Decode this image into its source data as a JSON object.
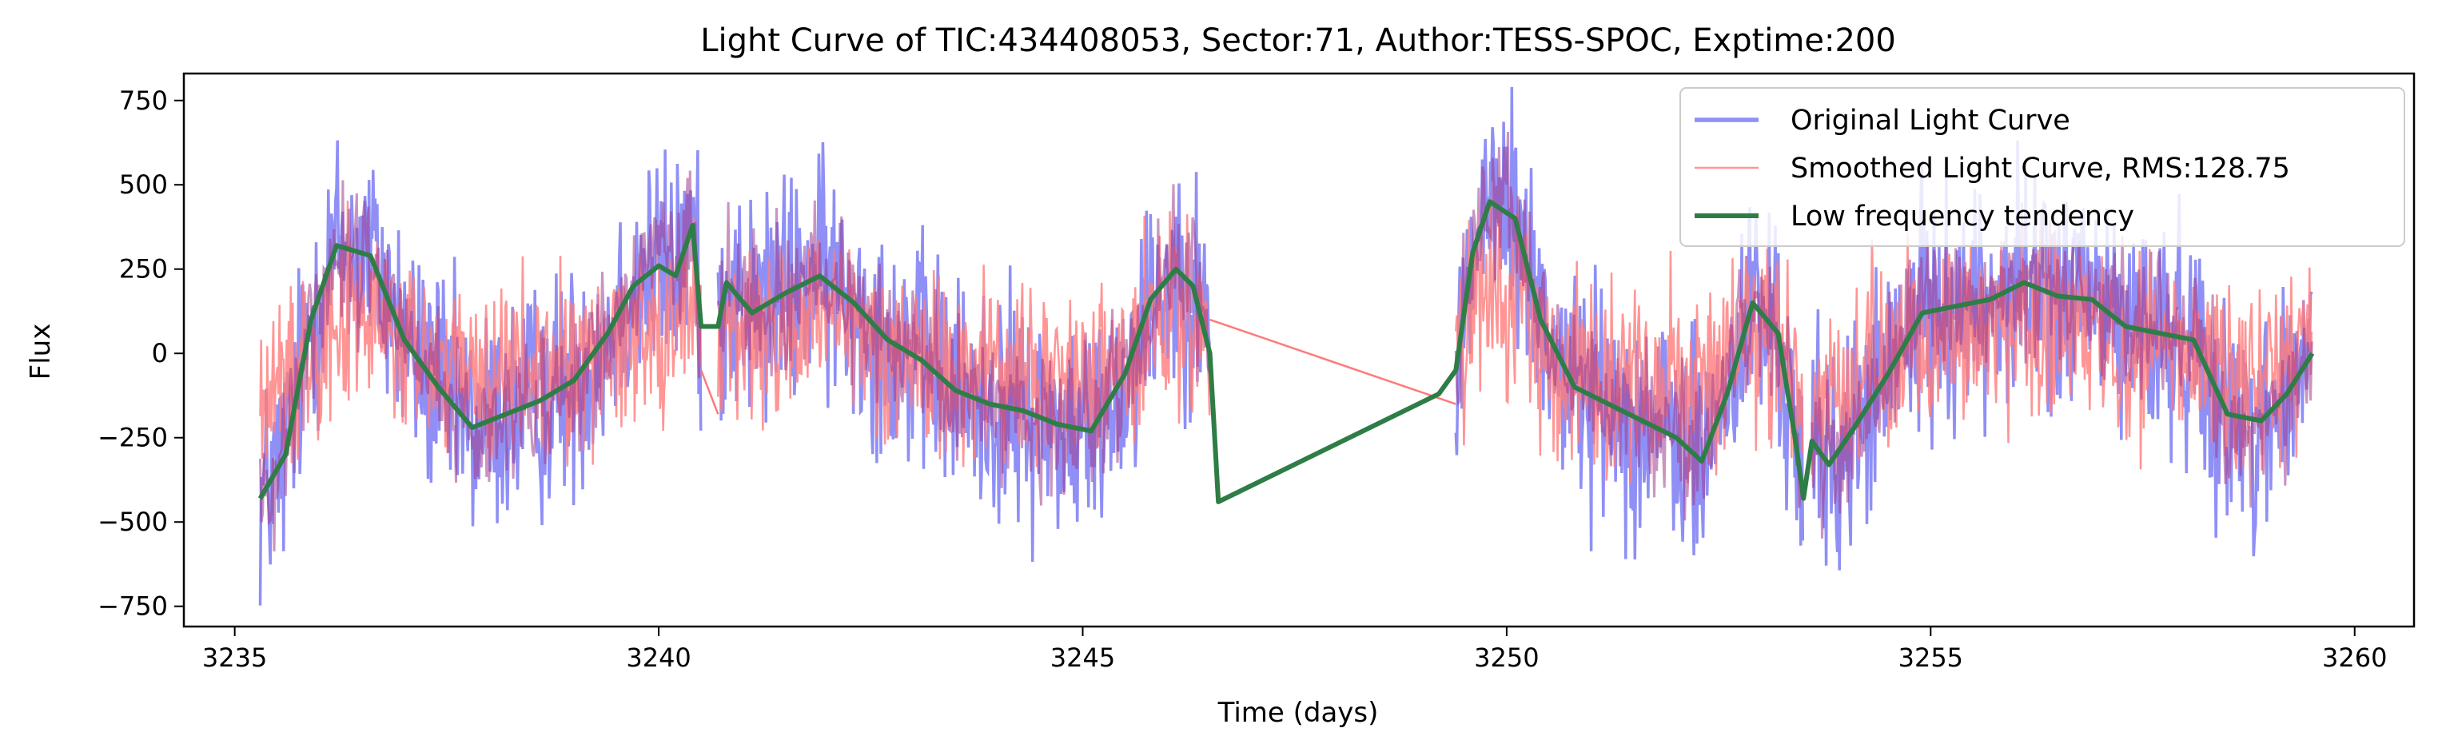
{
  "chart_data": {
    "type": "line",
    "title": "Light Curve of TIC:434408053, Sector:71, Author:TESS-SPOC, Exptime:200",
    "xlabel": "Time (days)",
    "ylabel": "Flux",
    "xlim": [
      3234.4,
      3260.7
    ],
    "ylim": [
      -810,
      830
    ],
    "xticks": [
      3235,
      3240,
      3245,
      3250,
      3255,
      3260
    ],
    "yticks": [
      -750,
      -500,
      -250,
      0,
      250,
      500,
      750
    ],
    "xtick_labels": [
      "3235",
      "3240",
      "3245",
      "3250",
      "3255",
      "3260"
    ],
    "ytick_labels": [
      "−750",
      "−500",
      "−250",
      "0",
      "250",
      "500",
      "750"
    ],
    "grid": false,
    "legend_position": "top-right",
    "series": [
      {
        "name": "Original Light Curve",
        "color": "#7b7bf5",
        "style": "noisy",
        "segments": [
          [
            3235.3,
            3240.5
          ],
          [
            3240.7,
            3246.5
          ],
          [
            3249.4,
            3253.5
          ],
          [
            3253.6,
            3259.5
          ]
        ],
        "amplitude": 230
      },
      {
        "name": "Smoothed Light Curve, RMS:128.75",
        "color": "#ff7a7a",
        "style": "noisy",
        "segments": [
          [
            3235.3,
            3240.5
          ],
          [
            3240.7,
            3246.5
          ],
          [
            3249.4,
            3253.5
          ],
          [
            3253.6,
            3259.5
          ]
        ],
        "amplitude": 128.75,
        "gap_links": [
          {
            "x": [
              3240.5,
              3240.7
            ],
            "y": [
              -50,
              -180
            ]
          },
          {
            "x": [
              3246.5,
              3249.4
            ],
            "y": [
              100,
              -150
            ]
          }
        ]
      },
      {
        "name": "Low frequency tendency",
        "color": "#2e7d46",
        "style": "trend",
        "x": [
          3235.3,
          3235.6,
          3235.9,
          3236.2,
          3236.6,
          3237.0,
          3237.4,
          3237.8,
          3238.2,
          3238.6,
          3239.0,
          3239.4,
          3239.7,
          3240.0,
          3240.2,
          3240.4,
          3240.5,
          3240.7,
          3240.8,
          3241.1,
          3241.5,
          3241.9,
          3242.3,
          3242.7,
          3243.1,
          3243.5,
          3243.9,
          3244.3,
          3244.7,
          3245.1,
          3245.5,
          3245.8,
          3246.1,
          3246.3,
          3246.5,
          3246.6,
          3249.2,
          3249.4,
          3249.6,
          3249.8,
          3250.1,
          3250.4,
          3250.8,
          3251.2,
          3251.6,
          3252.0,
          3252.3,
          3252.6,
          3252.9,
          3253.2,
          3253.4,
          3253.5,
          3253.6,
          3253.8,
          3254.1,
          3254.5,
          3254.9,
          3255.3,
          3255.7,
          3256.1,
          3256.5,
          3256.9,
          3257.3,
          3257.7,
          3258.1,
          3258.5,
          3258.9,
          3259.2,
          3259.5
        ],
        "y": [
          -430,
          -300,
          100,
          320,
          290,
          40,
          -100,
          -220,
          -180,
          -140,
          -80,
          60,
          200,
          260,
          230,
          380,
          80,
          80,
          210,
          120,
          180,
          230,
          150,
          40,
          -20,
          -110,
          -150,
          -170,
          -210,
          -230,
          -60,
          160,
          250,
          200,
          0,
          -440,
          -120,
          -50,
          300,
          450,
          400,
          100,
          -100,
          -150,
          -200,
          -250,
          -320,
          -120,
          150,
          60,
          -250,
          -430,
          -260,
          -330,
          -220,
          -60,
          120,
          140,
          160,
          210,
          170,
          160,
          80,
          60,
          40,
          -180,
          -200,
          -120,
          0
        ]
      }
    ]
  }
}
